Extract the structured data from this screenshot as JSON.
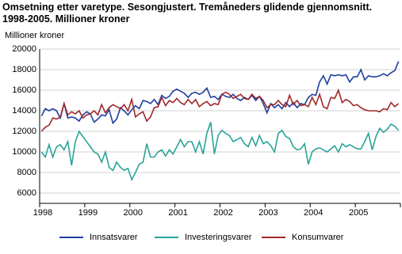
{
  "chart_data": {
    "type": "line",
    "title": "Omsetning etter varetype. Sesongjustert. Tremåneders glidende gjennomsnitt. 1998-2005. Millioner kroner",
    "y_label": "Millioner kroner",
    "categories": [
      "1998",
      null,
      null,
      null,
      null,
      null,
      null,
      null,
      null,
      null,
      null,
      null,
      "1999",
      null,
      null,
      null,
      null,
      null,
      null,
      null,
      null,
      null,
      null,
      null,
      "2000",
      null,
      null,
      null,
      null,
      null,
      null,
      null,
      null,
      null,
      null,
      null,
      "2001",
      null,
      null,
      null,
      null,
      null,
      null,
      null,
      null,
      null,
      null,
      null,
      "2002",
      null,
      null,
      null,
      null,
      null,
      null,
      null,
      null,
      null,
      null,
      null,
      "2003",
      null,
      null,
      null,
      null,
      null,
      null,
      null,
      null,
      null,
      null,
      null,
      "2004",
      null,
      null,
      null,
      null,
      null,
      null,
      null,
      null,
      null,
      null,
      null,
      "2005",
      null,
      null,
      null,
      null,
      null,
      null,
      null,
      null,
      null,
      null,
      null
    ],
    "ylim": [
      5000,
      20000
    ],
    "yticks": [
      6000,
      8000,
      10000,
      12000,
      14000,
      16000,
      18000,
      20000
    ],
    "grid": true,
    "legend": "bottom",
    "series": [
      {
        "name": "Innsatsvarer",
        "color": "#1f3f9f",
        "values": [
          13500,
          14200,
          14000,
          14200,
          14000,
          13300,
          14700,
          13300,
          13400,
          13300,
          13000,
          13600,
          13900,
          13700,
          12900,
          13200,
          13600,
          13500,
          14100,
          12800,
          13200,
          14300,
          14000,
          13600,
          14100,
          14500,
          14200,
          15000,
          14900,
          14700,
          15100,
          14600,
          15500,
          15200,
          15400,
          15900,
          16100,
          15900,
          15700,
          15300,
          15700,
          15800,
          15600,
          15800,
          16200,
          15300,
          15400,
          15100,
          15600,
          15400,
          15300,
          15600,
          15200,
          15000,
          15300,
          15100,
          15500,
          15000,
          15400,
          14700,
          13800,
          14700,
          14300,
          14600,
          14200,
          14800,
          14400,
          14800,
          14300,
          14700,
          14600,
          15300,
          15600,
          15500,
          16800,
          17400,
          16600,
          17500,
          17400,
          17500,
          17400,
          17500,
          16800,
          17300,
          17300,
          18000,
          17000,
          17400,
          17300,
          17300,
          17400,
          17600,
          17400,
          17700,
          17900,
          18800
        ]
      },
      {
        "name": "Investeringsvarer",
        "color": "#2aa39a",
        "values": [
          10000,
          9500,
          10700,
          9500,
          10500,
          10700,
          10200,
          11000,
          8700,
          11000,
          12000,
          11500,
          11000,
          10500,
          10000,
          9800,
          9000,
          10000,
          8500,
          8200,
          9000,
          8500,
          8200,
          8400,
          7300,
          8000,
          8800,
          9000,
          10800,
          9500,
          9500,
          10000,
          10200,
          9600,
          10200,
          9800,
          10500,
          11200,
          10500,
          11000,
          11000,
          10000,
          11000,
          9800,
          11800,
          12900,
          9800,
          11600,
          12100,
          11800,
          11600,
          11000,
          11200,
          11400,
          10800,
          10500,
          11400,
          10600,
          11600,
          10800,
          11000,
          10600,
          10000,
          11800,
          12100,
          11500,
          11300,
          10500,
          10200,
          10300,
          10800,
          8800,
          10000,
          10300,
          10400,
          10200,
          10000,
          10300,
          10600,
          10000,
          10800,
          10500,
          10700,
          10500,
          10300,
          10300,
          11000,
          11800,
          10200,
          11500,
          12300,
          11900,
          12200,
          12700,
          12500,
          12100
        ]
      },
      {
        "name": "Konsumvarer",
        "color": "#a0282a",
        "values": [
          12000,
          12400,
          12600,
          13300,
          13200,
          13400,
          14700,
          13600,
          13900,
          13700,
          14000,
          13300,
          13600,
          13700,
          14000,
          13600,
          14600,
          13800,
          14300,
          14600,
          14400,
          14200,
          14600,
          14000,
          15100,
          13400,
          13700,
          13900,
          13000,
          13400,
          14300,
          14400,
          15300,
          14500,
          15000,
          14800,
          15200,
          14800,
          14600,
          15100,
          14700,
          15100,
          14400,
          14700,
          14900,
          14500,
          14700,
          14600,
          15600,
          15800,
          15600,
          15200,
          15400,
          15600,
          15200,
          15100,
          15600,
          15200,
          15400,
          15000,
          14300,
          14600,
          14600,
          15000,
          14600,
          14400,
          15500,
          14600,
          15000,
          14500,
          14600,
          14400,
          15300,
          14600,
          15600,
          14400,
          14200,
          15300,
          15200,
          16000,
          14800,
          15100,
          14900,
          14500,
          14600,
          14300,
          14100,
          14000,
          14000,
          14000,
          13900,
          14200,
          14100,
          14800,
          14400,
          14700
        ]
      }
    ]
  }
}
